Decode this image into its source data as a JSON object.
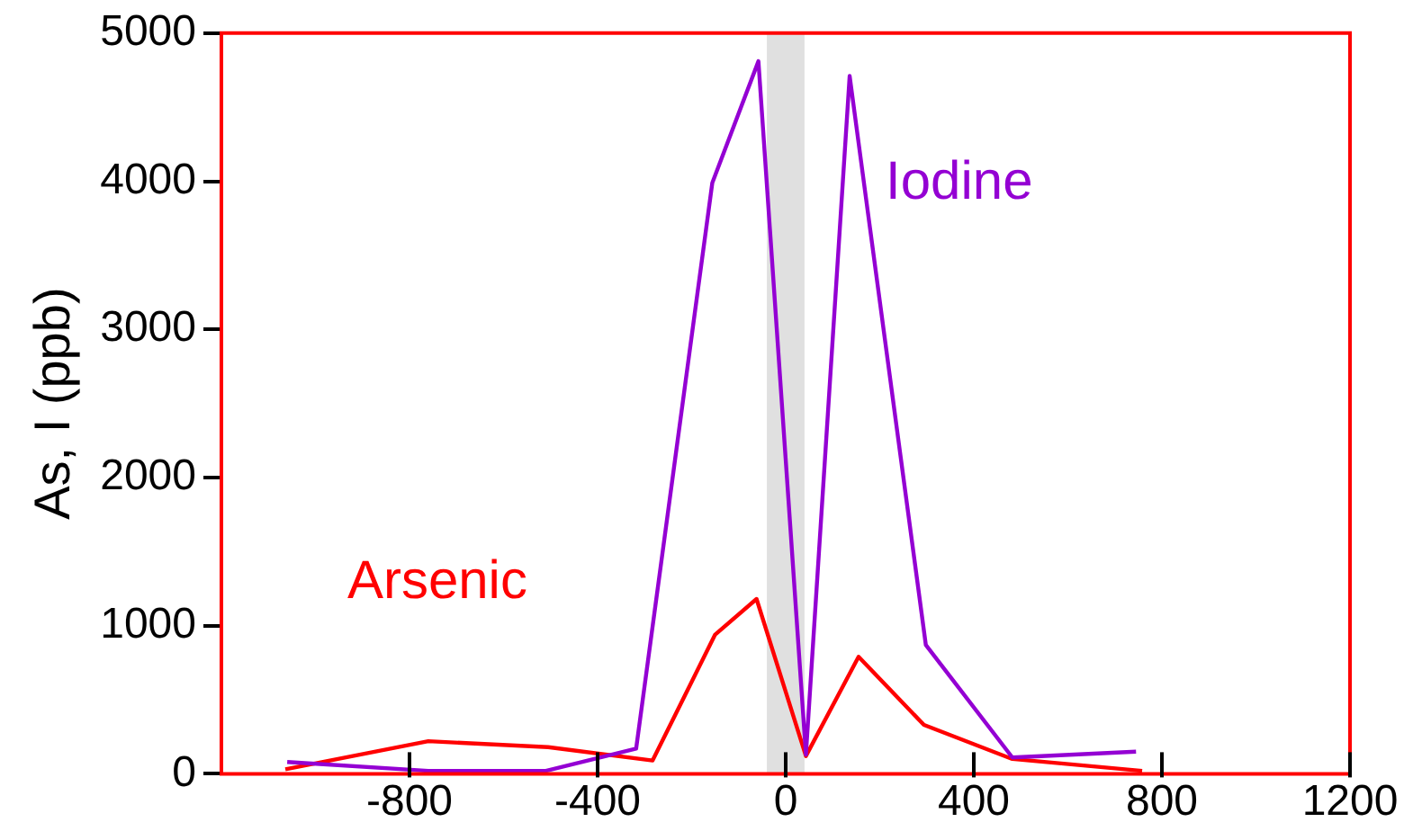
{
  "chart_data": {
    "type": "line",
    "ylabel": "As, I (ppb)",
    "xlim": [
      -1200,
      1200
    ],
    "xticks": [
      -800,
      -400,
      0,
      400,
      800,
      1200
    ],
    "ylim": [
      0,
      5000
    ],
    "yticks": [
      0,
      1000,
      2000,
      3000,
      4000,
      5000
    ],
    "grid": false,
    "legend": false,
    "marker": "none",
    "bands": [
      {
        "axis": "x",
        "from": -40,
        "to": 40,
        "color": "#e0e0e0"
      }
    ],
    "series": [
      {
        "name": "Iodine",
        "color": "#9400d3",
        "x": [
          -1060,
          -760,
          -510,
          -318,
          -156,
          -58,
          43,
          136,
          298,
          482,
          745
        ],
        "values": [
          80,
          20,
          20,
          170,
          3990,
          4810,
          130,
          4710,
          870,
          110,
          150
        ]
      },
      {
        "name": "Arsenic",
        "color": "#ff0000",
        "x": [
          -1064,
          -760,
          -505,
          -283,
          -150,
          -62,
          43,
          155,
          294,
          482,
          758
        ],
        "values": [
          30,
          220,
          180,
          90,
          940,
          1180,
          120,
          790,
          330,
          100,
          20
        ]
      }
    ]
  }
}
